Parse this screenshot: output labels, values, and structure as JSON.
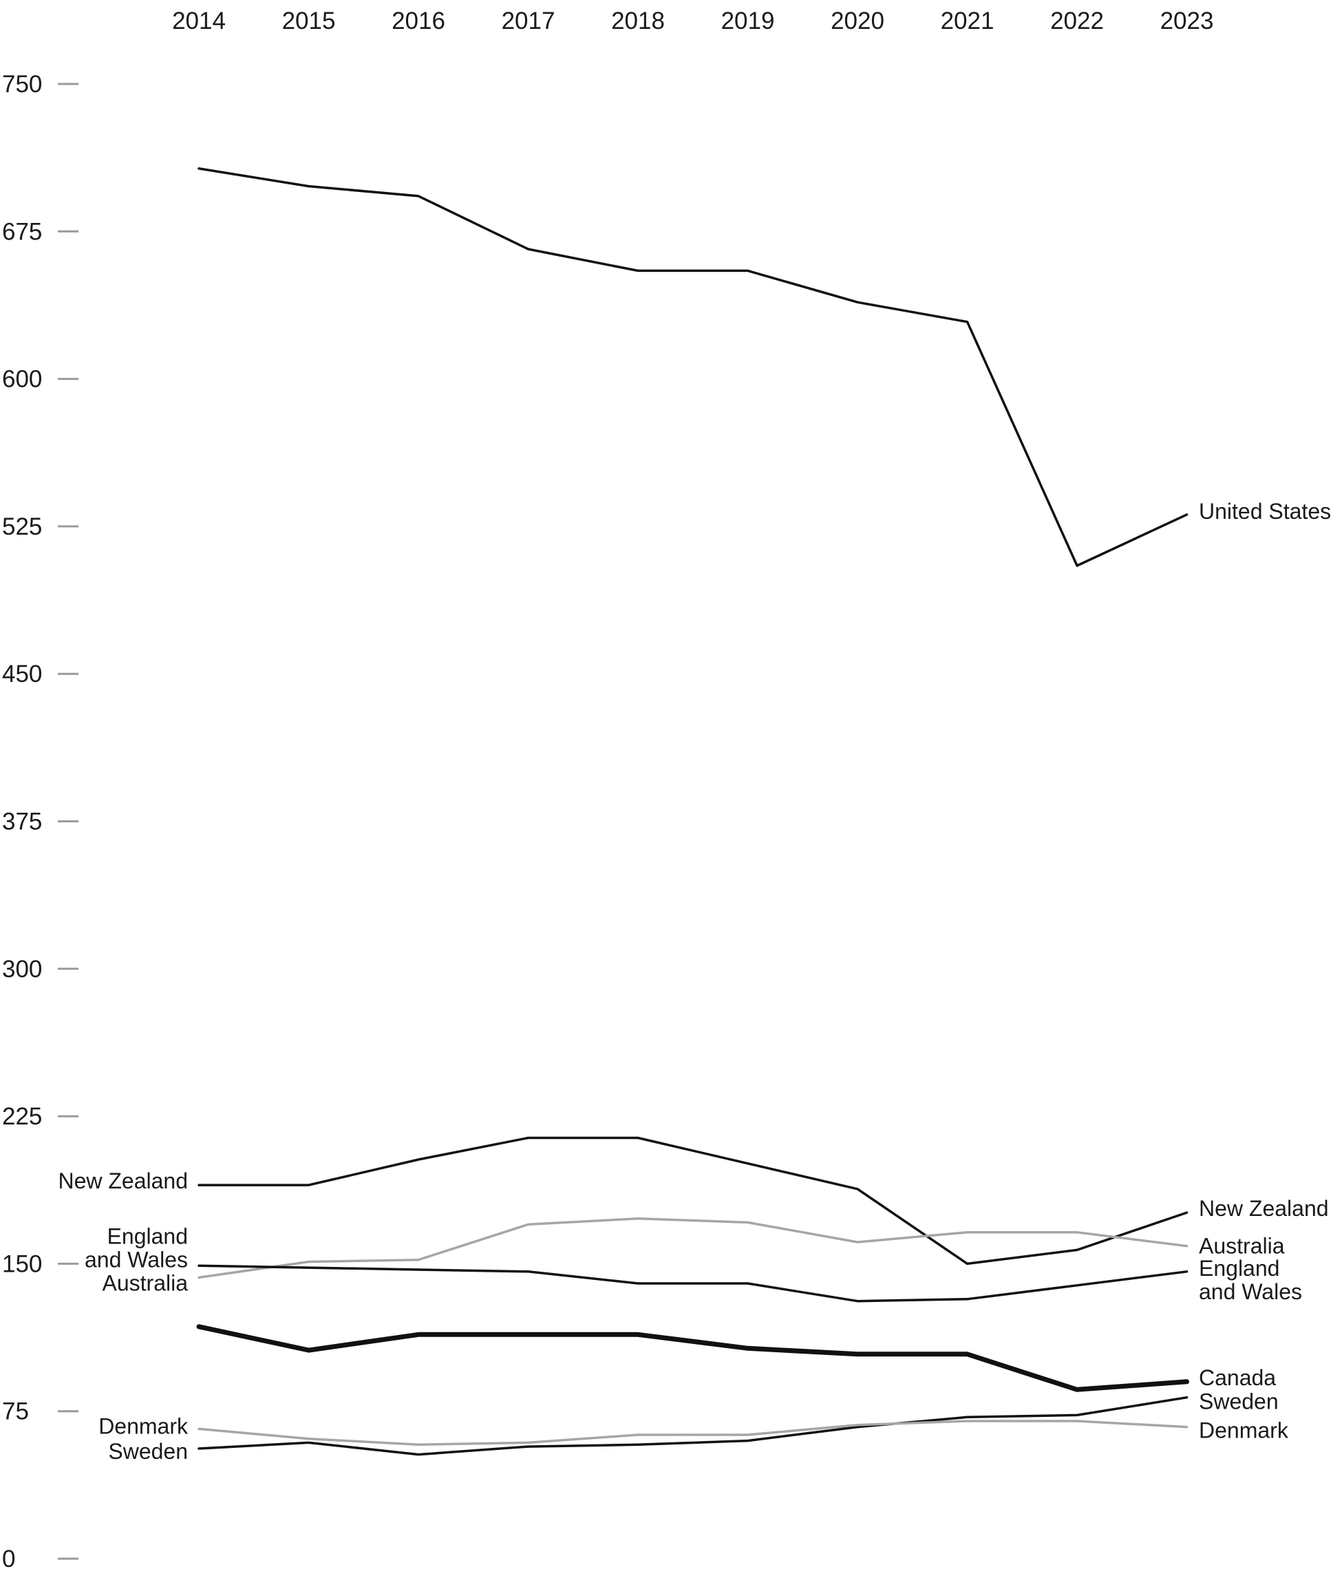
{
  "chart_data": {
    "type": "line",
    "title": "",
    "xlabel": "",
    "ylabel": "",
    "x": [
      "2014",
      "2015",
      "2016",
      "2017",
      "2018",
      "2019",
      "2020",
      "2021",
      "2022",
      "2023"
    ],
    "ylim": [
      0,
      750
    ],
    "yticks": [
      "0",
      "75",
      "150",
      "225",
      "300",
      "375",
      "450",
      "525",
      "600",
      "675",
      "750"
    ],
    "grid": false,
    "series": [
      {
        "name": "United States",
        "color": "#111111",
        "width": "normal",
        "values": [
          707,
          698,
          693,
          666,
          655,
          655,
          639,
          629,
          505,
          531
        ],
        "start_label": [],
        "end_label": [
          "United States"
        ]
      },
      {
        "name": "New Zealand",
        "color": "#111111",
        "width": "normal",
        "values": [
          190,
          190,
          203,
          214,
          214,
          201,
          188,
          150,
          157,
          176
        ],
        "start_label": [
          "New Zealand"
        ],
        "end_label": [
          "New Zealand"
        ]
      },
      {
        "name": "Australia",
        "color": "#a6a6a6",
        "width": "normal",
        "values": [
          143,
          151,
          152,
          170,
          173,
          171,
          161,
          166,
          166,
          159
        ],
        "start_label": [
          "Australia"
        ],
        "end_label": [
          "Australia"
        ]
      },
      {
        "name": "England and Wales",
        "color": "#111111",
        "width": "normal",
        "values": [
          149,
          148,
          147,
          146,
          140,
          140,
          131,
          132,
          139,
          146
        ],
        "start_label": [
          "England",
          "and Wales"
        ],
        "end_label": [
          "England",
          "and Wales"
        ]
      },
      {
        "name": "Canada",
        "color": "#111111",
        "width": "bold",
        "values": [
          118,
          106,
          114,
          114,
          114,
          107,
          104,
          104,
          86,
          90
        ],
        "start_label": [],
        "end_label": [
          "Canada"
        ]
      },
      {
        "name": "Sweden",
        "color": "#111111",
        "width": "normal",
        "values": [
          56,
          59,
          53,
          57,
          58,
          60,
          67,
          72,
          73,
          82
        ],
        "start_label": [
          "Sweden"
        ],
        "end_label": [
          "Sweden"
        ]
      },
      {
        "name": "Denmark",
        "color": "#a6a6a6",
        "width": "normal",
        "values": [
          66,
          61,
          58,
          59,
          63,
          63,
          68,
          70,
          70,
          67
        ],
        "start_label": [
          "Denmark"
        ],
        "end_label": [
          "Denmark"
        ]
      }
    ]
  }
}
